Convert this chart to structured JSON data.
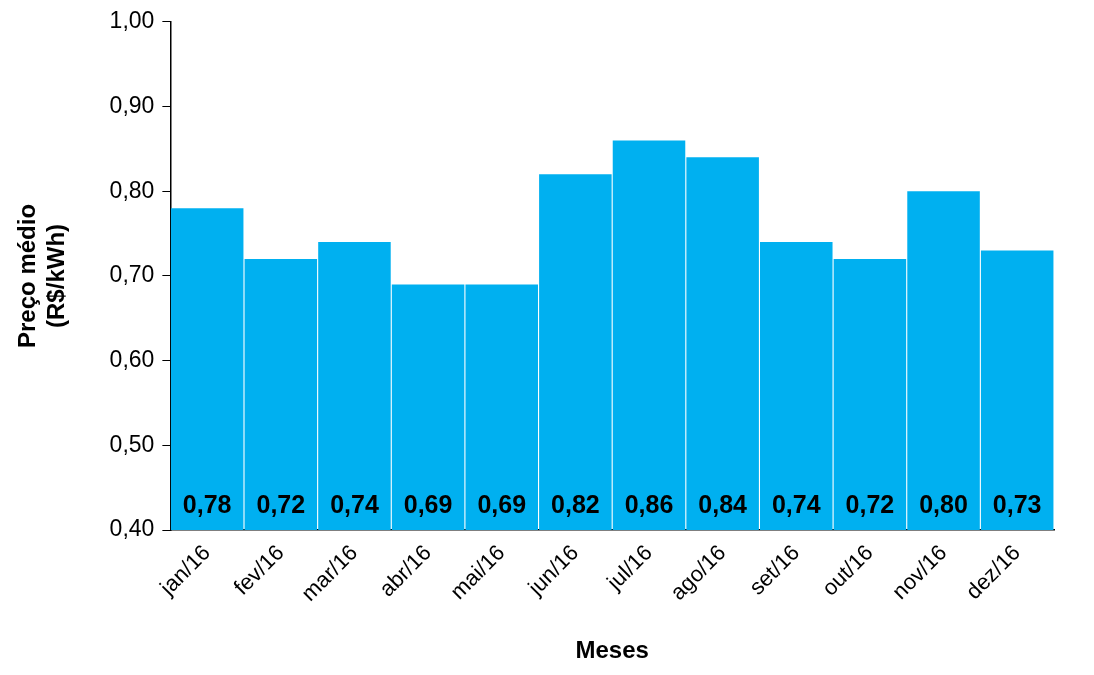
{
  "chart_data": {
    "type": "bar",
    "xlabel": "Meses",
    "ylabel": "Preço médio\n(R$/kWh)",
    "categories": [
      "jan/16",
      "fev/16",
      "mar/16",
      "abr/16",
      "mai/16",
      "jun/16",
      "jul/16",
      "ago/16",
      "set/16",
      "out/16",
      "nov/16",
      "dez/16"
    ],
    "values": [
      0.78,
      0.72,
      0.74,
      0.69,
      0.69,
      0.82,
      0.86,
      0.84,
      0.74,
      0.72,
      0.8,
      0.73
    ],
    "value_labels": [
      "0,78",
      "0,72",
      "0,74",
      "0,69",
      "0,69",
      "0,82",
      "0,86",
      "0,84",
      "0,74",
      "0,72",
      "0,80",
      "0,73"
    ],
    "color": "#00b0f0",
    "ylim": [
      0.4,
      1.0
    ],
    "yticks": [
      {
        "value": 0.4,
        "label": "0,40"
      },
      {
        "value": 0.5,
        "label": "0,50"
      },
      {
        "value": 0.6,
        "label": "0,60"
      },
      {
        "value": 0.7,
        "label": "0,70"
      },
      {
        "value": 0.8,
        "label": "0,80"
      },
      {
        "value": 0.9,
        "label": "0,90"
      },
      {
        "value": 1.0,
        "label": "1,00"
      }
    ],
    "grid": false,
    "legend": false
  }
}
